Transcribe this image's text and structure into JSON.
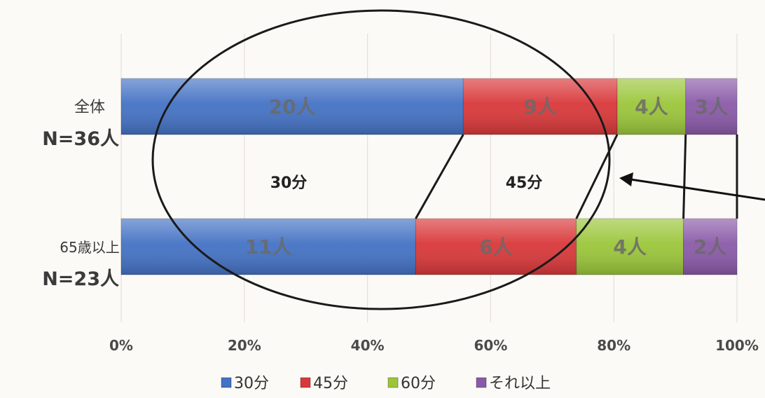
{
  "chart_data": {
    "type": "bar",
    "orientation": "horizontal",
    "stacked": "percent",
    "categories": [
      {
        "name": "全体",
        "n_label": "N=36人"
      },
      {
        "name": "65歳以上",
        "n_label": "N=23人"
      }
    ],
    "series": [
      {
        "name": "30分",
        "color": "#4472c4",
        "values": [
          20,
          11
        ],
        "data_labels": [
          "20人",
          "11人"
        ]
      },
      {
        "name": "45分",
        "color": "#d9383a",
        "values": [
          9,
          6
        ],
        "data_labels": [
          "9人",
          "6人"
        ]
      },
      {
        "name": "60分",
        "color": "#9bc63a",
        "values": [
          4,
          4
        ],
        "data_labels": [
          "4人",
          "4人"
        ]
      },
      {
        "name": "それ以上",
        "color": "#8a5aa8",
        "values": [
          3,
          2
        ],
        "data_labels": [
          "3人",
          "2人"
        ]
      }
    ],
    "x_ticks": [
      "0%",
      "20%",
      "40%",
      "60%",
      "80%",
      "100%"
    ],
    "xlim": [
      0,
      100
    ],
    "grid": "vertical",
    "legend_position": "bottom",
    "annotations": [
      {
        "text": "30分"
      },
      {
        "text": "45分"
      }
    ]
  }
}
